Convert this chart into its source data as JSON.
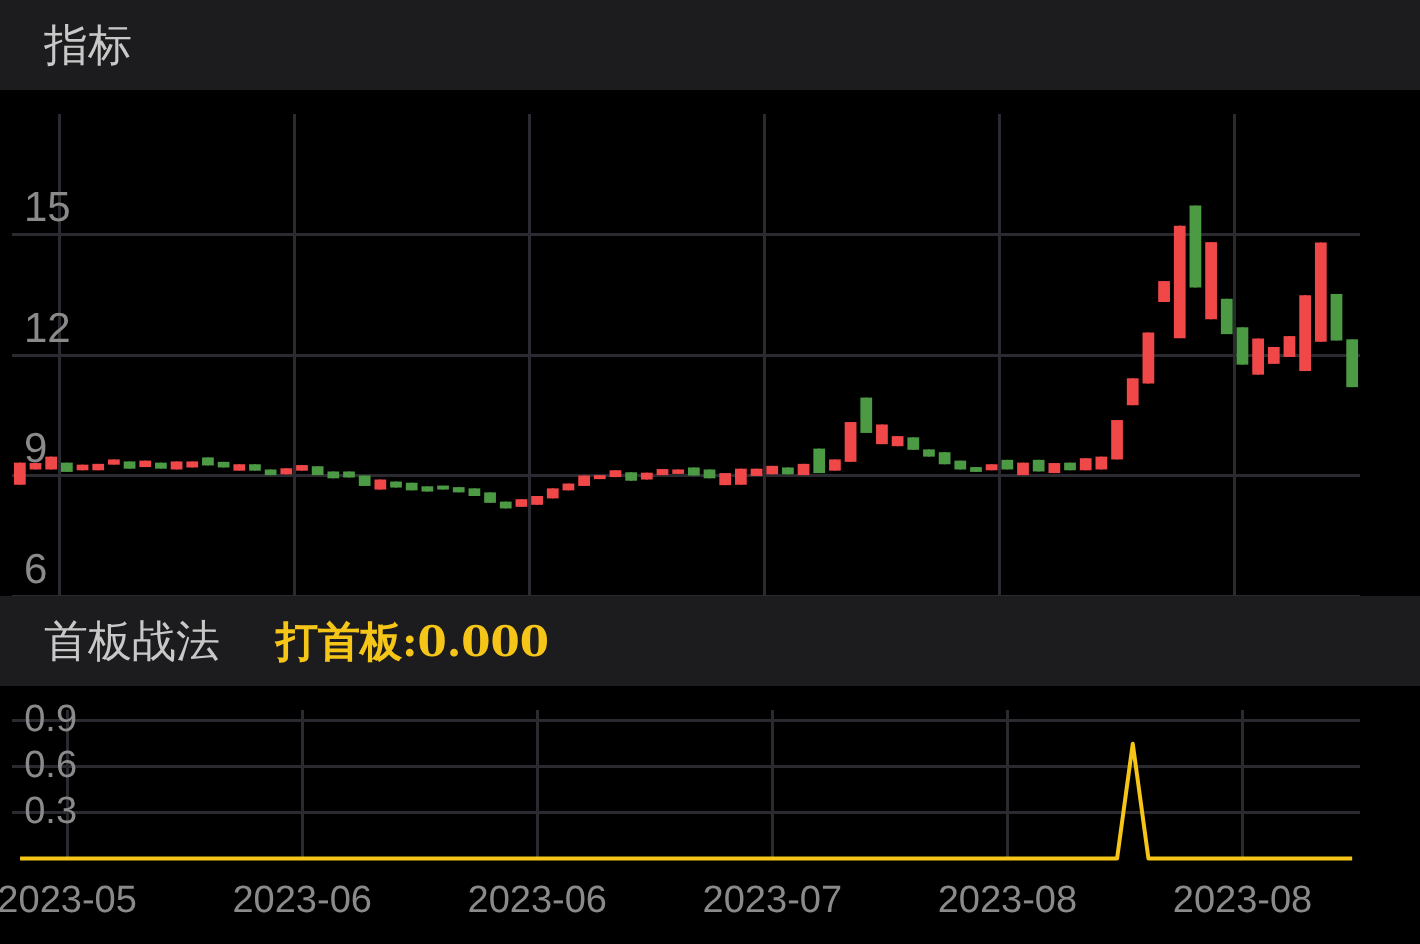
{
  "chart_data": [
    {
      "type": "candlestick",
      "title": "指标",
      "categories": [
        null,
        null,
        null,
        "2023-05",
        null,
        null,
        null,
        null,
        null,
        null,
        null,
        null,
        null,
        null,
        null,
        null,
        null,
        null,
        "2023-06",
        null,
        null,
        null,
        null,
        null,
        null,
        null,
        null,
        null,
        null,
        null,
        null,
        null,
        null,
        "2023-06",
        null,
        null,
        null,
        null,
        null,
        null,
        null,
        null,
        null,
        null,
        null,
        null,
        null,
        null,
        "2023-07",
        null,
        null,
        null,
        null,
        null,
        null,
        null,
        null,
        null,
        null,
        null,
        null,
        null,
        null,
        "2023-08",
        null,
        null,
        null,
        null,
        null,
        null,
        null,
        null,
        null,
        null,
        null,
        null,
        null,
        null,
        "2023-08",
        null,
        null,
        null,
        null,
        null,
        null,
        null
      ],
      "ohlc": [
        [
          8.77,
          9.32,
          8.77,
          9.32
        ],
        [
          9.15,
          9.31,
          9.15,
          9.31
        ],
        [
          9.15,
          9.47,
          9.15,
          9.47
        ],
        [
          9.32,
          9.32,
          9.09,
          9.09
        ],
        [
          9.13,
          9.27,
          9.13,
          9.27
        ],
        [
          9.13,
          9.29,
          9.13,
          9.29
        ],
        [
          9.27,
          9.4,
          9.27,
          9.4
        ],
        [
          9.35,
          9.35,
          9.17,
          9.17
        ],
        [
          9.21,
          9.37,
          9.21,
          9.37
        ],
        [
          9.32,
          9.32,
          9.17,
          9.17
        ],
        [
          9.15,
          9.35,
          9.15,
          9.35
        ],
        [
          9.2,
          9.35,
          9.2,
          9.35
        ],
        [
          9.45,
          9.45,
          9.25,
          9.25
        ],
        [
          9.34,
          9.34,
          9.2,
          9.2
        ],
        [
          9.12,
          9.28,
          9.12,
          9.28
        ],
        [
          9.28,
          9.28,
          9.12,
          9.12
        ],
        [
          9.15,
          9.15,
          9.01,
          9.01
        ],
        [
          9.03,
          9.18,
          9.03,
          9.18
        ],
        [
          9.12,
          9.26,
          9.12,
          9.26
        ],
        [
          9.23,
          9.23,
          9.01,
          9.01
        ],
        [
          9.1,
          9.1,
          8.93,
          8.93
        ],
        [
          9.1,
          9.1,
          8.95,
          8.95
        ],
        [
          9.0,
          9.0,
          8.74,
          8.74
        ],
        [
          8.65,
          8.9,
          8.65,
          8.9
        ],
        [
          8.85,
          8.85,
          8.7,
          8.7
        ],
        [
          8.82,
          8.82,
          8.63,
          8.63
        ],
        [
          8.73,
          8.73,
          8.6,
          8.6
        ],
        [
          8.73,
          8.73,
          8.65,
          8.65
        ],
        [
          8.71,
          8.71,
          8.58,
          8.58
        ],
        [
          8.68,
          8.68,
          8.49,
          8.49
        ],
        [
          8.58,
          8.58,
          8.32,
          8.32
        ],
        [
          8.35,
          8.35,
          8.18,
          8.18
        ],
        [
          8.22,
          8.41,
          8.22,
          8.41
        ],
        [
          8.27,
          8.49,
          8.27,
          8.49
        ],
        [
          8.43,
          8.68,
          8.43,
          8.68
        ],
        [
          8.63,
          8.8,
          8.63,
          8.8
        ],
        [
          8.74,
          9.0,
          8.74,
          9.0
        ],
        [
          8.91,
          9.0,
          8.91,
          9.0
        ],
        [
          8.96,
          9.13,
          8.96,
          9.13
        ],
        [
          9.08,
          9.08,
          8.87,
          8.87
        ],
        [
          8.9,
          9.07,
          8.9,
          9.07
        ],
        [
          9.01,
          9.16,
          9.01,
          9.16
        ],
        [
          9.04,
          9.15,
          9.04,
          9.15
        ],
        [
          9.2,
          9.2,
          9.0,
          9.0
        ],
        [
          9.15,
          9.15,
          8.93,
          8.93
        ],
        [
          8.76,
          9.06,
          8.76,
          9.06
        ],
        [
          8.77,
          9.17,
          8.77,
          9.17
        ],
        [
          8.99,
          9.17,
          8.99,
          9.17
        ],
        [
          9.03,
          9.24,
          9.03,
          9.24
        ],
        [
          9.2,
          9.2,
          9.03,
          9.03
        ],
        [
          9.01,
          9.29,
          9.01,
          9.29
        ],
        [
          9.67,
          9.67,
          9.06,
          9.06
        ],
        [
          9.12,
          9.4,
          9.12,
          9.4
        ],
        [
          9.34,
          10.33,
          9.34,
          10.33
        ],
        [
          10.94,
          10.94,
          10.06,
          10.06
        ],
        [
          9.78,
          10.27,
          9.78,
          10.27
        ],
        [
          9.73,
          9.98,
          9.73,
          9.98
        ],
        [
          9.95,
          9.95,
          9.64,
          9.64
        ],
        [
          9.65,
          9.65,
          9.47,
          9.47
        ],
        [
          9.58,
          9.58,
          9.28,
          9.28
        ],
        [
          9.37,
          9.37,
          9.15,
          9.15
        ],
        [
          9.21,
          9.21,
          9.09,
          9.09
        ],
        [
          9.13,
          9.28,
          9.13,
          9.28
        ],
        [
          9.39,
          9.39,
          9.15,
          9.15
        ],
        [
          9.01,
          9.32,
          9.01,
          9.32
        ],
        [
          9.39,
          9.39,
          9.1,
          9.1
        ],
        [
          9.06,
          9.31,
          9.06,
          9.31
        ],
        [
          9.32,
          9.32,
          9.13,
          9.13
        ],
        [
          9.13,
          9.43,
          9.13,
          9.43
        ],
        [
          9.15,
          9.47,
          9.15,
          9.47
        ],
        [
          9.4,
          10.38,
          9.4,
          10.38
        ],
        [
          10.75,
          11.42,
          10.75,
          11.42
        ],
        [
          11.29,
          12.56,
          11.29,
          12.56
        ],
        [
          13.32,
          13.84,
          13.32,
          13.84
        ],
        [
          12.42,
          15.22,
          12.42,
          15.22
        ],
        [
          15.72,
          15.72,
          13.68,
          13.68
        ],
        [
          12.89,
          14.81,
          12.89,
          14.81
        ],
        [
          13.4,
          13.4,
          12.52,
          12.52
        ],
        [
          12.69,
          12.69,
          11.76,
          11.76
        ],
        [
          11.51,
          12.41,
          11.51,
          12.41
        ],
        [
          11.78,
          12.2,
          11.78,
          12.2
        ],
        [
          11.95,
          12.47,
          11.95,
          12.47
        ],
        [
          11.6,
          13.49,
          11.6,
          13.49
        ],
        [
          12.33,
          14.8,
          12.33,
          14.8
        ],
        [
          13.52,
          13.52,
          12.36,
          12.36
        ],
        [
          12.39,
          12.39,
          11.2,
          11.2
        ]
      ],
      "colors": [
        "#f04848",
        "#f04848",
        "#f04848",
        "#4c9a44",
        "#f04848",
        "#f04848",
        "#f04848",
        "#4c9a44",
        "#f04848",
        "#4c9a44",
        "#f04848",
        "#f04848",
        "#4c9a44",
        "#4c9a44",
        "#f04848",
        "#4c9a44",
        "#4c9a44",
        "#f04848",
        "#f04848",
        "#4c9a44",
        "#4c9a44",
        "#4c9a44",
        "#4c9a44",
        "#f04848",
        "#4c9a44",
        "#4c9a44",
        "#4c9a44",
        "#4c9a44",
        "#4c9a44",
        "#4c9a44",
        "#4c9a44",
        "#4c9a44",
        "#f04848",
        "#f04848",
        "#f04848",
        "#f04848",
        "#f04848",
        "#f04848",
        "#f04848",
        "#4c9a44",
        "#f04848",
        "#f04848",
        "#f04848",
        "#4c9a44",
        "#4c9a44",
        "#f04848",
        "#f04848",
        "#f04848",
        "#f04848",
        "#4c9a44",
        "#f04848",
        "#4c9a44",
        "#f04848",
        "#f04848",
        "#4c9a44",
        "#f04848",
        "#f04848",
        "#4c9a44",
        "#4c9a44",
        "#4c9a44",
        "#4c9a44",
        "#4c9a44",
        "#f04848",
        "#4c9a44",
        "#f04848",
        "#4c9a44",
        "#f04848",
        "#4c9a44",
        "#f04848",
        "#f04848",
        "#f04848",
        "#f04848",
        "#f04848",
        "#f04848",
        "#f04848",
        "#4c9a44",
        "#f04848",
        "#4c9a44",
        "#4c9a44",
        "#f04848",
        "#f04848",
        "#f04848",
        "#f04848",
        "#f04848",
        "#4c9a44",
        "#4c9a44"
      ],
      "ylim": [
        6,
        18
      ],
      "yticks": [
        6,
        9,
        12,
        15
      ],
      "grid": true,
      "tick_labels": "y"
    },
    {
      "type": "line",
      "title": "首板战法",
      "annotations": [
        "打首板:0.000"
      ],
      "categories": [
        null,
        null,
        null,
        "2023-05",
        null,
        null,
        null,
        null,
        null,
        null,
        null,
        null,
        null,
        null,
        null,
        null,
        null,
        null,
        "2023-06",
        null,
        null,
        null,
        null,
        null,
        null,
        null,
        null,
        null,
        null,
        null,
        null,
        null,
        null,
        "2023-06",
        null,
        null,
        null,
        null,
        null,
        null,
        null,
        null,
        null,
        null,
        null,
        null,
        null,
        null,
        "2023-07",
        null,
        null,
        null,
        null,
        null,
        null,
        null,
        null,
        null,
        null,
        null,
        null,
        null,
        null,
        "2023-08",
        null,
        null,
        null,
        null,
        null,
        null,
        null,
        null,
        null,
        null,
        null,
        null,
        null,
        null,
        "2023-08",
        null,
        null,
        null,
        null,
        null,
        null,
        null
      ],
      "series": [
        {
          "color": "#f5c518",
          "values": [
            0,
            0,
            0,
            0,
            0,
            0,
            0,
            0,
            0,
            0,
            0,
            0,
            0,
            0,
            0,
            0,
            0,
            0,
            0,
            0,
            0,
            0,
            0,
            0,
            0,
            0,
            0,
            0,
            0,
            0,
            0,
            0,
            0,
            0,
            0,
            0,
            0,
            0,
            0,
            0,
            0,
            0,
            0,
            0,
            0,
            0,
            0,
            0,
            0,
            0,
            0,
            0,
            0,
            0,
            0,
            0,
            0,
            0,
            0,
            0,
            0,
            0,
            0,
            0,
            0,
            0,
            0,
            0,
            0,
            0,
            0,
            0.75,
            0,
            0,
            0,
            0,
            0,
            0,
            0,
            0,
            0,
            0,
            0,
            0,
            0,
            0
          ]
        }
      ],
      "ylim": [
        0,
        0.97
      ],
      "yticks": [
        0.3,
        0.6,
        0.9
      ],
      "grid": true,
      "marker": "none",
      "line_style": "solid"
    }
  ]
}
